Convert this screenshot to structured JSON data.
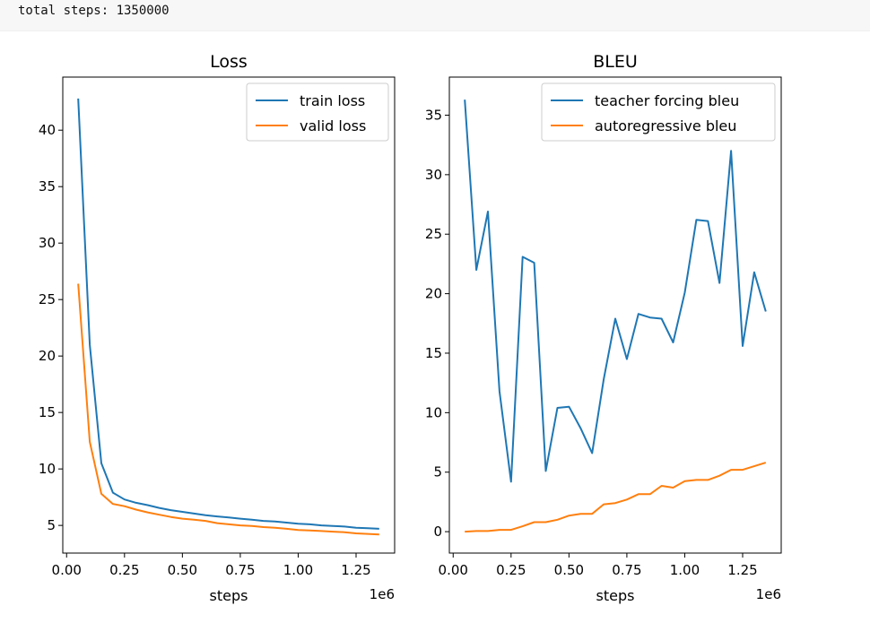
{
  "console": {
    "output": "total steps: 1350000"
  },
  "chart_data": [
    {
      "type": "line",
      "title": "Loss",
      "xlabel": "steps",
      "x_offset_label": "1e6",
      "xlim": [
        -0.0165,
        1.4165
      ],
      "ylim": [
        2.55,
        44.7
      ],
      "xticks": [
        0.0,
        0.25,
        0.5,
        0.75,
        1.0,
        1.25
      ],
      "xtick_labels": [
        "0.00",
        "0.25",
        "0.50",
        "0.75",
        "1.00",
        "1.25"
      ],
      "yticks": [
        5,
        10,
        15,
        20,
        25,
        30,
        35,
        40
      ],
      "ytick_labels": [
        "5",
        "10",
        "15",
        "20",
        "25",
        "30",
        "35",
        "40"
      ],
      "legend_position": "upper right",
      "x": [
        0.05,
        0.1,
        0.15,
        0.2,
        0.25,
        0.3,
        0.35,
        0.4,
        0.45,
        0.5,
        0.55,
        0.6,
        0.65,
        0.7,
        0.75,
        0.8,
        0.85,
        0.9,
        0.95,
        1.0,
        1.05,
        1.1,
        1.15,
        1.2,
        1.25,
        1.3,
        1.35
      ],
      "series": [
        {
          "name": "train loss",
          "color": "#1f77b4",
          "values": [
            42.8,
            21.0,
            10.5,
            7.9,
            7.3,
            7.0,
            6.8,
            6.55,
            6.35,
            6.2,
            6.05,
            5.9,
            5.8,
            5.7,
            5.6,
            5.5,
            5.4,
            5.35,
            5.25,
            5.15,
            5.1,
            5.0,
            4.95,
            4.9,
            4.8,
            4.75,
            4.7
          ]
        },
        {
          "name": "valid loss",
          "color": "#ff7f0e",
          "values": [
            26.4,
            12.4,
            7.8,
            6.9,
            6.7,
            6.4,
            6.15,
            5.95,
            5.75,
            5.6,
            5.5,
            5.4,
            5.2,
            5.1,
            5.0,
            4.95,
            4.85,
            4.8,
            4.7,
            4.6,
            4.55,
            4.5,
            4.45,
            4.4,
            4.3,
            4.25,
            4.2
          ]
        }
      ]
    },
    {
      "type": "line",
      "title": "BLEU",
      "xlabel": "steps",
      "x_offset_label": "1e6",
      "xlim": [
        -0.0165,
        1.4165
      ],
      "ylim": [
        -1.8,
        38.2
      ],
      "xticks": [
        0.0,
        0.25,
        0.5,
        0.75,
        1.0,
        1.25
      ],
      "xtick_labels": [
        "0.00",
        "0.25",
        "0.50",
        "0.75",
        "1.00",
        "1.25"
      ],
      "yticks": [
        0,
        5,
        10,
        15,
        20,
        25,
        30,
        35
      ],
      "ytick_labels": [
        "0",
        "5",
        "10",
        "15",
        "20",
        "25",
        "30",
        "35"
      ],
      "legend_position": "upper right",
      "x": [
        0.05,
        0.1,
        0.15,
        0.2,
        0.25,
        0.3,
        0.35,
        0.4,
        0.45,
        0.5,
        0.55,
        0.6,
        0.65,
        0.7,
        0.75,
        0.8,
        0.85,
        0.9,
        0.95,
        1.0,
        1.05,
        1.1,
        1.15,
        1.2,
        1.25,
        1.3,
        1.35
      ],
      "series": [
        {
          "name": "teacher forcing bleu",
          "color": "#1f77b4",
          "values": [
            36.3,
            22.0,
            26.9,
            11.8,
            4.2,
            23.1,
            22.6,
            5.1,
            10.4,
            10.5,
            8.7,
            6.6,
            12.8,
            17.9,
            14.5,
            18.3,
            18.0,
            17.9,
            15.9,
            20.1,
            26.2,
            26.1,
            20.9,
            32.0,
            15.6,
            21.8,
            18.5
          ]
        },
        {
          "name": "autoregressive bleu",
          "color": "#ff7f0e",
          "values": [
            0.0,
            0.05,
            0.05,
            0.15,
            0.15,
            0.45,
            0.8,
            0.8,
            1.0,
            1.35,
            1.5,
            1.5,
            2.3,
            2.4,
            2.7,
            3.15,
            3.15,
            3.85,
            3.7,
            4.25,
            4.35,
            4.35,
            4.7,
            5.2,
            5.2,
            5.5,
            5.8
          ]
        }
      ]
    }
  ]
}
